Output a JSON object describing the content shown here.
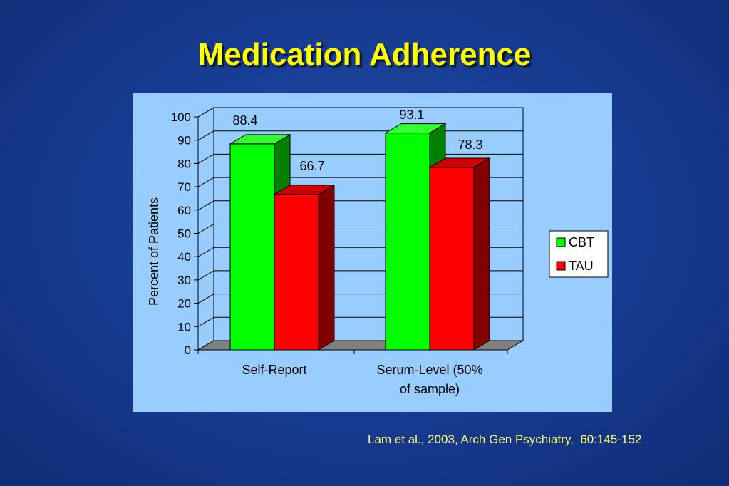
{
  "slide": {
    "title": "Medication Adherence",
    "citation": "Lam et al., 2003, Arch Gen Psychiatry,  60:145-152"
  },
  "colors": {
    "background": "#163a8f",
    "title": "#ffff00",
    "panel": "#99ccff",
    "cbt": "#00ff00",
    "tau": "#ff0000",
    "citation": "#ffff66"
  },
  "chart_data": {
    "type": "bar",
    "title": "",
    "ylabel": "Percent of Patients",
    "xlabel": "",
    "ylim": [
      0,
      100
    ],
    "yticks": [
      "0",
      "10",
      "20",
      "30",
      "40",
      "50",
      "60",
      "70",
      "80",
      "90",
      "100"
    ],
    "categories": [
      "Self-Report",
      "Serum-Level (50% of sample)"
    ],
    "category_lines": [
      [
        "Self-Report"
      ],
      [
        "Serum-Level (50%",
        "of sample)"
      ]
    ],
    "series": [
      {
        "name": "CBT",
        "values": [
          88.4,
          93.1
        ],
        "labels": [
          "88.4",
          "93.1"
        ]
      },
      {
        "name": "TAU",
        "values": [
          66.7,
          78.3
        ],
        "labels": [
          "66.7",
          "78.3"
        ]
      }
    ],
    "legend_position": "right",
    "grid": true,
    "three_d": true
  }
}
